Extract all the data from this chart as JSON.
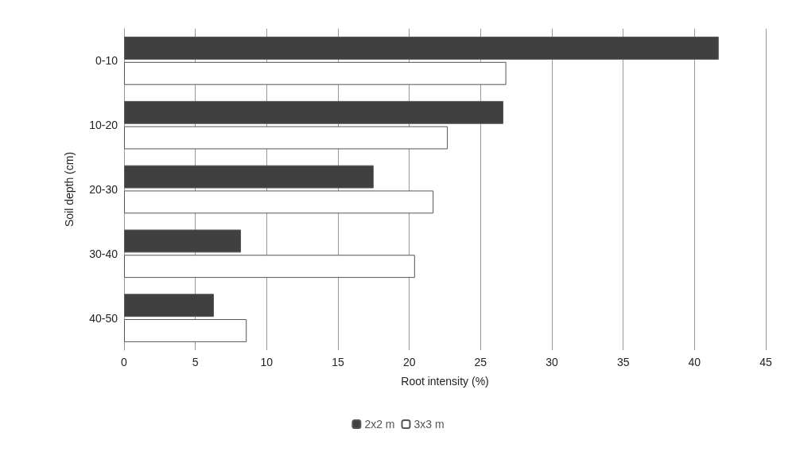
{
  "chart_data": {
    "type": "bar",
    "orientation": "horizontal",
    "xlabel": "Root intensity (%)",
    "ylabel": "Soil depth (cm)",
    "categories": [
      "0-10",
      "10-20",
      "20-30",
      "30-40",
      "40-50"
    ],
    "series": [
      {
        "name": "2x2 m",
        "color": "#404040",
        "values": [
          41.7,
          26.6,
          17.5,
          8.2,
          6.3
        ]
      },
      {
        "name": "3x3 m",
        "color": "#ffffff",
        "values": [
          26.8,
          22.7,
          21.7,
          20.4,
          8.6
        ]
      }
    ],
    "xlim": [
      0,
      45
    ],
    "xticks": [
      0,
      5,
      10,
      15,
      20,
      25,
      30,
      35,
      40,
      45
    ],
    "grid": "x",
    "legend": "bottom"
  }
}
